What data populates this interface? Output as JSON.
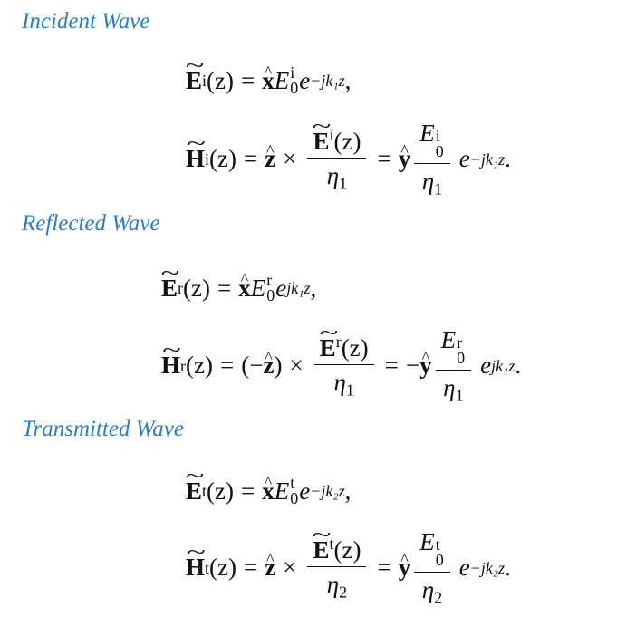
{
  "headings": {
    "incident": "Incident Wave",
    "reflected": "Reflected Wave",
    "transmitted": "Transmitted Wave"
  },
  "incident": {
    "sup": "i",
    "e_exp": "−jk₁z",
    "e_tail": ",",
    "h_exp": "−jk₁z",
    "h_tail": ".",
    "eta": "η",
    "eta_sub": "1"
  },
  "reflected": {
    "sup": "r",
    "e_exp": "jk₁z",
    "e_tail": ",",
    "h_exp": "jk₁z",
    "h_tail": ".",
    "eta": "η",
    "eta_sub": "1"
  },
  "transmitted": {
    "sup": "t",
    "e_exp": "−jk₂z",
    "e_tail": ",",
    "h_exp": "−jk₂z",
    "h_tail": ".",
    "eta": "η",
    "eta_sub": "2"
  },
  "symbols": {
    "E": "E",
    "H": "H",
    "x_hat": "x",
    "y_hat": "y",
    "z_hat": "z",
    "e": "e",
    "z_arg": "(z)",
    "equals": "=",
    "times": "×",
    "minus": "−",
    "zero": "0",
    "lparen": "(",
    "rparen": ")"
  }
}
